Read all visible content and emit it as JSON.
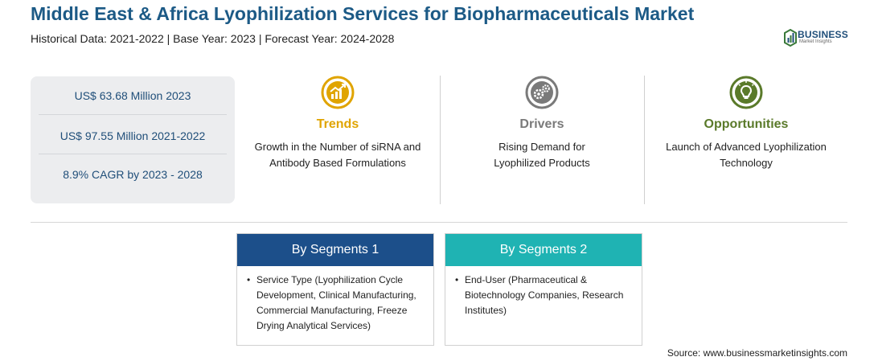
{
  "header": {
    "title": "Middle East & Africa Lyophilization Services for Biopharmaceuticals Market",
    "subtitle": "Historical Data: 2021-2022 | Base Year: 2023 | Forecast Year: 2024-2028"
  },
  "logo": {
    "word": "BUSINESS",
    "sub": "Market Insights"
  },
  "stats": [
    {
      "label": "US$ 63.68 Million 2023"
    },
    {
      "label": "US$ 97.55 Million 2021-2022"
    },
    {
      "label": "8.9% CAGR by 2023 - 2028"
    }
  ],
  "columns": [
    {
      "heading": "Trends",
      "text": "Growth in the Number of siRNA and Antibody Based Formulations",
      "color": "#e0a400",
      "icon": "chart-growth-icon"
    },
    {
      "heading": "Drivers",
      "text": "Rising Demand for Lyophilized Products",
      "color": "#7a7a7a",
      "icon": "gears-icon"
    },
    {
      "heading": "Opportunities",
      "text": "Launch of Advanced Lyophilization Technology",
      "color": "#5a7a2a",
      "icon": "lightbulb-icon"
    }
  ],
  "segments": [
    {
      "title": "By Segments 1",
      "color": "#1c4f8a",
      "item": "Service Type (Lyophilization Cycle Development, Clinical Manufacturing, Commercial Manufacturing, Freeze Drying Analytical Services)"
    },
    {
      "title": "By Segments 2",
      "color": "#1fb3b3",
      "item": "End-User (Pharmaceutical & Biotechnology Companies, Research Institutes)"
    }
  ],
  "source": "Source: www.businessmarketinsights.com"
}
